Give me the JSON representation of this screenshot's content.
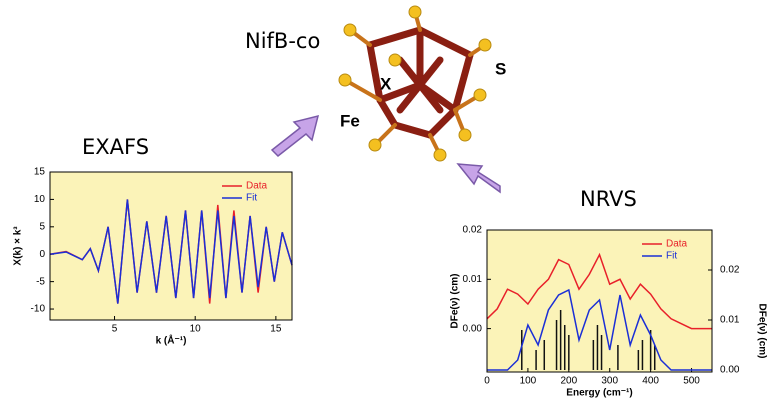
{
  "labels": {
    "molecule": "NifB-co",
    "atom_x": "X",
    "atom_s": "S",
    "atom_fe": "Fe",
    "exafs": "EXAFS",
    "nrvs": "NRVS"
  },
  "chart_data": [
    {
      "type": "line",
      "xlabel": "k (Å⁻¹)",
      "ylabel": "Χ(k) × k³",
      "x": [
        1,
        2,
        3,
        3.5,
        4,
        4.6,
        5.2,
        5.8,
        6.4,
        7.0,
        7.6,
        8.2,
        8.8,
        9.4,
        9.9,
        10.4,
        10.9,
        11.4,
        11.9,
        12.4,
        12.9,
        13.4,
        13.9,
        14.4,
        14.9,
        15.4,
        16
      ],
      "series": [
        {
          "name": "Data",
          "color": "#e8202a",
          "values": [
            0,
            0.5,
            -1,
            1,
            -3,
            5,
            -9,
            10,
            -7,
            6,
            -7,
            7,
            -8,
            8,
            -8,
            8,
            -9,
            9,
            -8,
            8,
            -7,
            7,
            -7,
            5,
            -5,
            4,
            -2
          ]
        },
        {
          "name": "Fit",
          "color": "#1b2fd6",
          "values": [
            0,
            0.4,
            -1,
            1,
            -3,
            5,
            -9,
            10,
            -7,
            6,
            -7,
            7,
            -8,
            8,
            -8,
            8,
            -8,
            8,
            -8,
            7,
            -7,
            7,
            -6,
            5,
            -5,
            4,
            -2
          ]
        }
      ],
      "xlim": [
        1,
        16
      ],
      "ylim": [
        -12,
        15
      ],
      "xticks": [
        5,
        10,
        15
      ],
      "yticks": [
        -10,
        -5,
        0,
        5,
        10,
        15
      ],
      "legend": "upper right",
      "background": "#fbf3b8"
    },
    {
      "type": "line",
      "xlabel": "Energy (cm⁻¹)",
      "ylabel": "DFe(ν) (cm)",
      "y2label": "DFe(ν) (cm)",
      "x": [
        0,
        25,
        50,
        75,
        100,
        125,
        150,
        175,
        200,
        225,
        250,
        275,
        300,
        325,
        350,
        375,
        400,
        425,
        450,
        475,
        500,
        525,
        550
      ],
      "series": [
        {
          "name": "Data",
          "color": "#e8202a",
          "values": [
            0.002,
            0.004,
            0.008,
            0.007,
            0.005,
            0.008,
            0.01,
            0.014,
            0.013,
            0.008,
            0.011,
            0.015,
            0.009,
            0.01,
            0.006,
            0.009,
            0.007,
            0.004,
            0.002,
            0.001,
            0.0,
            0.0,
            0.0
          ]
        },
        {
          "name": "Fit",
          "color": "#1b2fd6",
          "axis": "y2",
          "values": [
            0,
            0,
            0,
            0.002,
            0.009,
            0.005,
            0.012,
            0.015,
            0.016,
            0.006,
            0.012,
            0.014,
            0.004,
            0.015,
            0.005,
            0.011,
            0.007,
            0.002,
            0,
            0,
            0,
            0,
            0
          ]
        }
      ],
      "sticks": {
        "color": "#111111",
        "x": [
          85,
          120,
          140,
          170,
          180,
          190,
          200,
          260,
          270,
          280,
          320,
          370,
          380,
          400,
          410
        ],
        "values": [
          0.008,
          0.004,
          0.006,
          0.01,
          0.012,
          0.009,
          0.007,
          0.006,
          0.009,
          0.007,
          0.005,
          0.004,
          0.006,
          0.008,
          0.005
        ]
      },
      "xlim": [
        0,
        550
      ],
      "ylim": [
        -0.0088,
        0.02
      ],
      "y2lim": [
        -0.0004,
        0.028
      ],
      "xticks": [
        0,
        100,
        200,
        300,
        400,
        500
      ],
      "yticks": [
        {
          "value": 0,
          "label": "0.00"
        },
        {
          "value": 0.01,
          "label": "0.01"
        },
        {
          "value": 0.02,
          "label": "0.02"
        }
      ],
      "y2ticks": [
        {
          "value": 0,
          "label": "0.00"
        },
        {
          "value": 0.01,
          "label": "0.01"
        },
        {
          "value": 0.02,
          "label": "0.02"
        }
      ],
      "legend": "upper right",
      "background": "#fbf3b8"
    }
  ]
}
